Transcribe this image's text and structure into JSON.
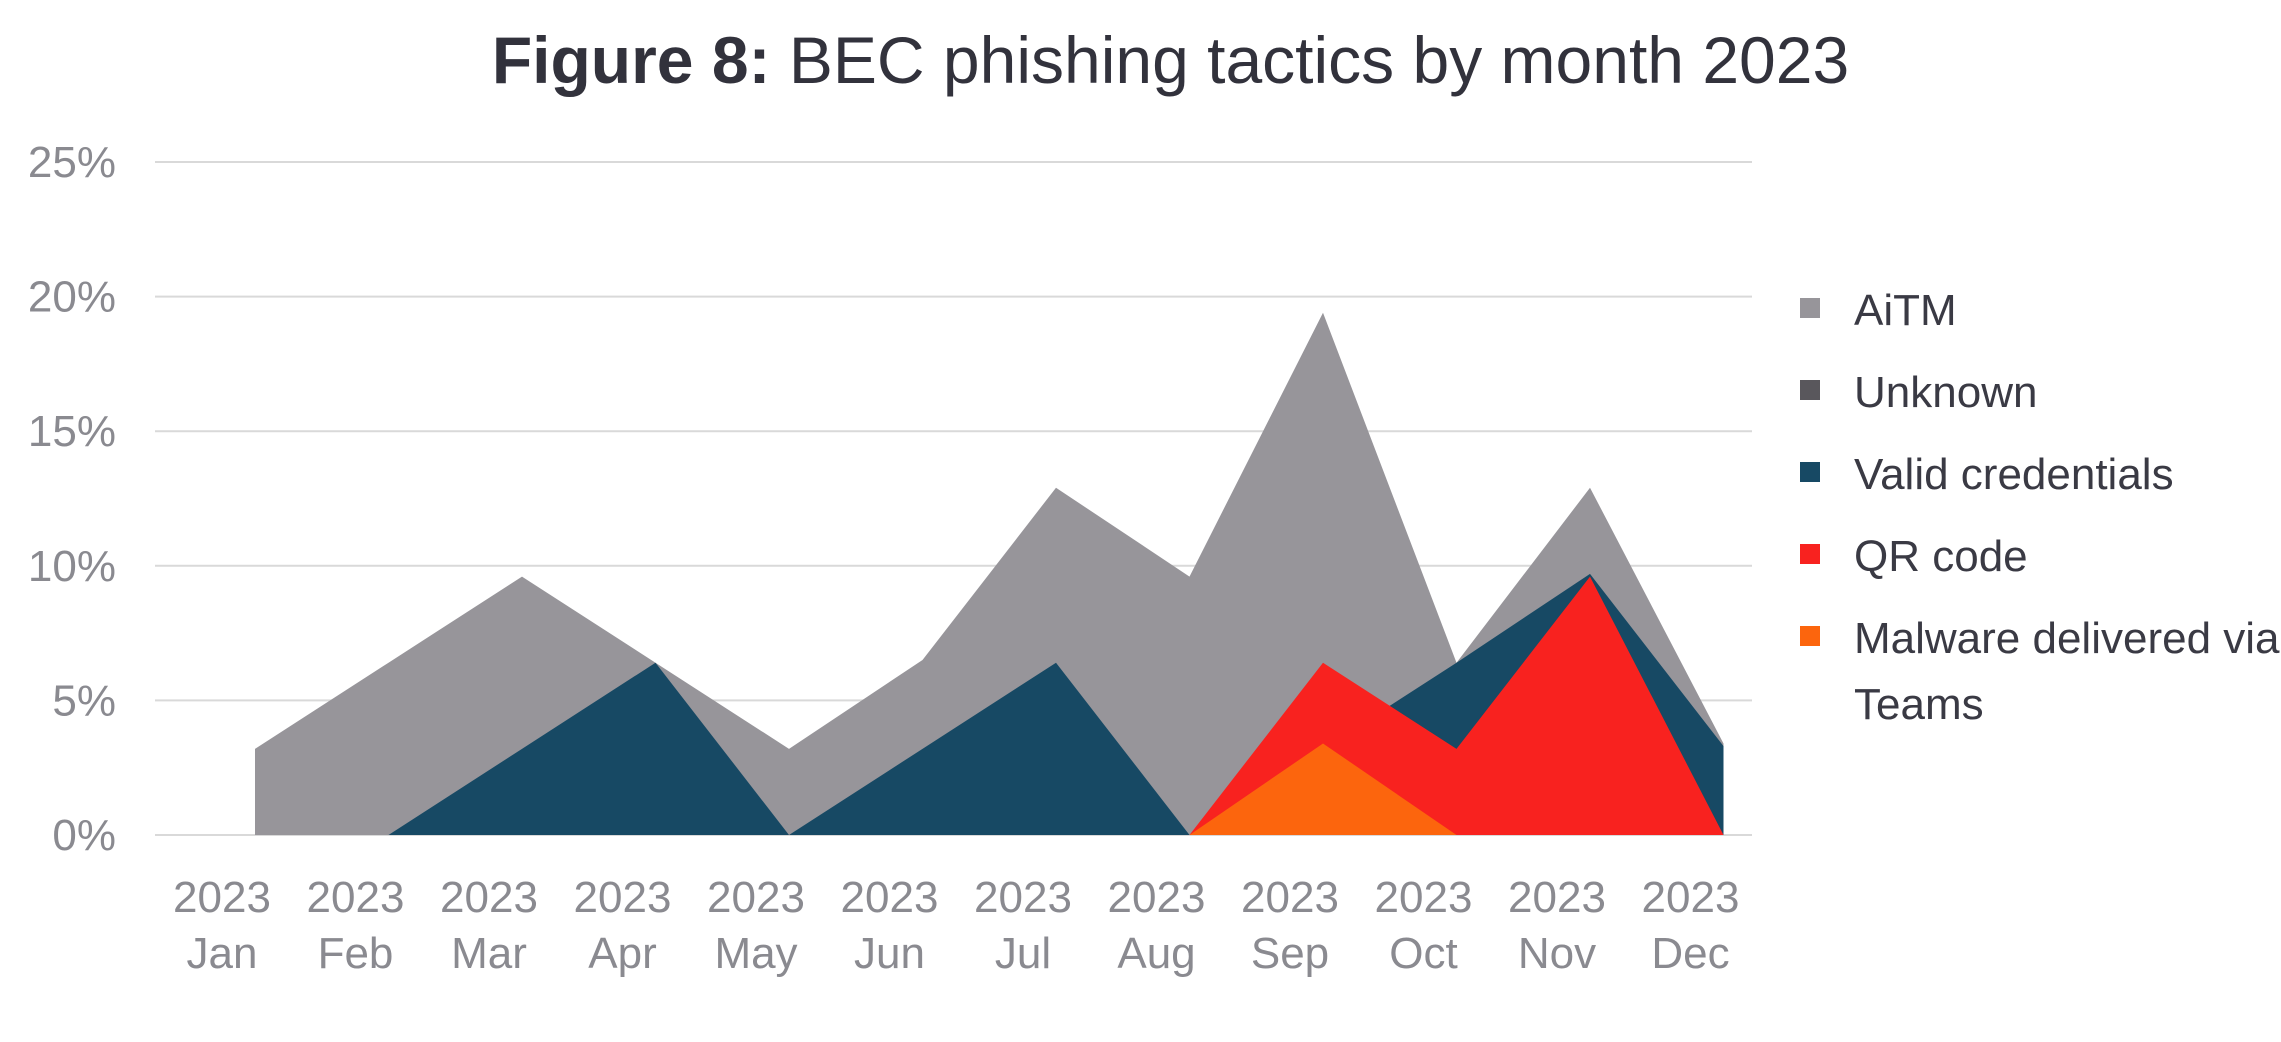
{
  "title_bold": "Figure 8:",
  "title_rest": "BEC phishing tactics by month 2023",
  "chart_data": {
    "type": "area",
    "categories": [
      [
        "2023",
        "Jan"
      ],
      [
        "2023",
        "Feb"
      ],
      [
        "2023",
        "Mar"
      ],
      [
        "2023",
        "Apr"
      ],
      [
        "2023",
        "May"
      ],
      [
        "2023",
        "Jun"
      ],
      [
        "2023",
        "Jul"
      ],
      [
        "2023",
        "Aug"
      ],
      [
        "2023",
        "Sep"
      ],
      [
        "2023",
        "Oct"
      ],
      [
        "2023",
        "Nov"
      ],
      [
        "2023",
        "Dec"
      ]
    ],
    "ylim": [
      0,
      25
    ],
    "yticks": [
      0,
      5,
      10,
      15,
      20,
      25
    ],
    "ytick_suffix": "%",
    "grid": true,
    "legend_position": "right",
    "series": [
      {
        "name": "AiTM",
        "color": "#97959a",
        "values": [
          3.2,
          6.4,
          9.6,
          6.4,
          3.2,
          6.5,
          12.9,
          9.6,
          19.4,
          6.4,
          12.9,
          3.4
        ]
      },
      {
        "name": "Unknown",
        "color": "#59575c",
        "values": [
          0,
          0,
          0,
          0,
          0,
          0,
          0,
          0,
          0,
          0,
          0,
          0
        ]
      },
      {
        "name": "Valid credentials",
        "color": "#174964",
        "values": [
          0,
          0,
          3.2,
          6.4,
          0,
          3.2,
          6.4,
          0,
          3.2,
          6.4,
          9.7,
          3.3
        ]
      },
      {
        "name": "QR code",
        "color": "#f8221f",
        "values": [
          0,
          0,
          0,
          0,
          0,
          0,
          0,
          0,
          6.4,
          3.2,
          9.6,
          0
        ]
      },
      {
        "name": "Malware delivered via Teams",
        "color": "#fc650d",
        "values": [
          0,
          0,
          0,
          0,
          0,
          0,
          0,
          0,
          3.4,
          0,
          0,
          0
        ]
      }
    ]
  }
}
